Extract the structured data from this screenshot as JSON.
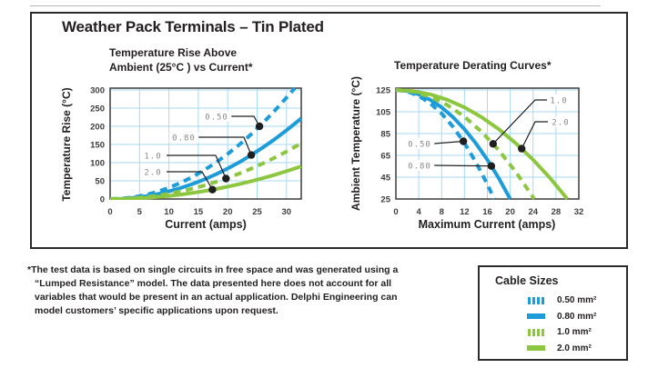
{
  "page_title": "Weather Pack Terminals – Tin Plated",
  "colors": {
    "blue": "#1e9cd9",
    "green": "#8dc63f",
    "grid": "#a7d9f2",
    "frame": "#3c3c3c",
    "text": "#231f20",
    "series_label": "#8a8a8a"
  },
  "chart_data": [
    {
      "type": "line",
      "title": "Temperature Rise Above\nAmbient (25°C ) vs Current*",
      "xlabel": "Current (amps)",
      "ylabel": "Temperature Rise (°C)",
      "xlim": [
        0,
        32.5
      ],
      "ylim": [
        0,
        305
      ],
      "xticks": [
        0,
        5,
        10,
        15,
        20,
        25,
        30
      ],
      "yticks": [
        0,
        50,
        100,
        150,
        200,
        250,
        300
      ],
      "grid": true,
      "legend_position": "callout-labels-inside-plot",
      "series": [
        {
          "name": "0.50",
          "cable": "0.50 mm²",
          "color": "#1e9cd9",
          "dashed": true,
          "x": [
            0,
            2,
            4,
            6,
            8,
            10,
            12,
            14,
            16,
            18,
            20,
            22,
            24,
            26,
            28,
            30,
            31.4
          ],
          "y": [
            0,
            1.2,
            5,
            11.2,
            19.8,
            31,
            44.6,
            60.8,
            79.4,
            100.4,
            124,
            150,
            178.6,
            209.6,
            243,
            279,
            305
          ],
          "label_point": [
            25.4,
            200
          ]
        },
        {
          "name": "0.80",
          "cable": "0.80 mm²",
          "color": "#1e9cd9",
          "dashed": false,
          "x": [
            0,
            2,
            4,
            6,
            8,
            10,
            12,
            14,
            16,
            18,
            20,
            22,
            24,
            26,
            28,
            30,
            32.5
          ],
          "y": [
            0,
            0.8,
            3.4,
            7.6,
            13.4,
            21,
            30.2,
            41.2,
            53.8,
            68,
            84,
            101.6,
            121,
            142,
            164.6,
            189,
            221.8
          ],
          "label_point": [
            24,
            121
          ]
        },
        {
          "name": "1.0",
          "cable": "1.0 mm²",
          "color": "#8dc63f",
          "dashed": true,
          "x": [
            0,
            2,
            4,
            6,
            8,
            10,
            12,
            14,
            16,
            18,
            20,
            22,
            24,
            26,
            28,
            30,
            32.5
          ],
          "y": [
            0,
            0.6,
            2.3,
            5.2,
            9.3,
            14.5,
            20.9,
            28.4,
            37.1,
            47,
            58,
            70.2,
            83.5,
            98,
            113.7,
            130.5,
            153.2
          ],
          "label_point": [
            19.7,
            56.3
          ]
        },
        {
          "name": "2.0",
          "cable": "2.0 mm²",
          "color": "#8dc63f",
          "dashed": false,
          "x": [
            0,
            2,
            4,
            6,
            8,
            10,
            12,
            14,
            16,
            18,
            20,
            22,
            24,
            26,
            28,
            30,
            32.5
          ],
          "y": [
            0,
            0.3,
            1.4,
            3.1,
            5.4,
            8.5,
            12.2,
            16.7,
            21.8,
            27.5,
            34,
            41.1,
            49,
            57.5,
            66.6,
            76.5,
            89.8
          ],
          "label_point": [
            17.4,
            25.7
          ]
        }
      ]
    },
    {
      "type": "line",
      "title": "Temperature Derating Curves*",
      "xlabel": "Maximum Current (amps)",
      "ylabel": "Ambient Temperature (°C)",
      "xlim": [
        0,
        32
      ],
      "ylim": [
        25,
        126.7
      ],
      "xticks": [
        0,
        4,
        8,
        12,
        16,
        20,
        24,
        28,
        32
      ],
      "yticks": [
        25,
        45,
        65,
        85,
        105,
        125
      ],
      "grid": true,
      "legend_position": "callout-labels-inside-plot",
      "series": [
        {
          "name": "0.50",
          "cable": "0.50 mm²",
          "color": "#1e9cd9",
          "dashed": true,
          "x": [
            0,
            2,
            4,
            6,
            8,
            10,
            12,
            14,
            16,
            17.2
          ],
          "y": [
            125,
            123.6,
            119.6,
            112.8,
            103.4,
            91.2,
            76.3,
            58.7,
            38.5,
            25
          ],
          "label_point": [
            11.8,
            77.9
          ]
        },
        {
          "name": "0.80",
          "cable": "0.80 mm²",
          "color": "#1e9cd9",
          "dashed": false,
          "x": [
            0,
            2,
            4,
            6,
            8,
            10,
            12,
            14,
            16,
            18,
            20
          ],
          "y": [
            125,
            124,
            121,
            116,
            109,
            100,
            89,
            76,
            61,
            44,
            25
          ],
          "label_point": [
            16.7,
            55.3
          ]
        },
        {
          "name": "1.0",
          "cable": "1.0 mm²",
          "color": "#8dc63f",
          "dashed": true,
          "x": [
            0,
            3,
            6,
            9,
            12,
            15,
            18,
            21,
            24.2
          ],
          "y": [
            125,
            123.5,
            118.8,
            111.2,
            100.4,
            86.6,
            69.7,
            49.7,
            25
          ],
          "label_point": [
            17,
            75.6
          ]
        },
        {
          "name": "2.0",
          "cable": "2.0 mm²",
          "color": "#8dc63f",
          "dashed": false,
          "x": [
            0,
            3,
            6,
            9,
            12,
            15,
            18,
            21,
            24,
            27,
            30
          ],
          "y": [
            125,
            124,
            121,
            116,
            109,
            100,
            89,
            76,
            61,
            44,
            25
          ],
          "label_point": [
            22,
            71.2
          ]
        }
      ]
    }
  ],
  "footnote": "*The test data is based on single circuits in free space and was generated using a\n“Lumped Resistance” model. The data presented here does not account for all\nvariables that would be present in an actual application. Delphi Engineering can\nmodel customers’ specific applications upon request.",
  "cable_sizes": {
    "title": "Cable Sizes",
    "items": [
      {
        "label": "0.50 mm²",
        "color": "#1e9cd9",
        "style": "dashed"
      },
      {
        "label": "0.80 mm²",
        "color": "#1e9cd9",
        "style": "solid"
      },
      {
        "label": "1.0 mm²",
        "color": "#8dc63f",
        "style": "dashed"
      },
      {
        "label": "2.0 mm²",
        "color": "#8dc63f",
        "style": "solid"
      }
    ]
  }
}
